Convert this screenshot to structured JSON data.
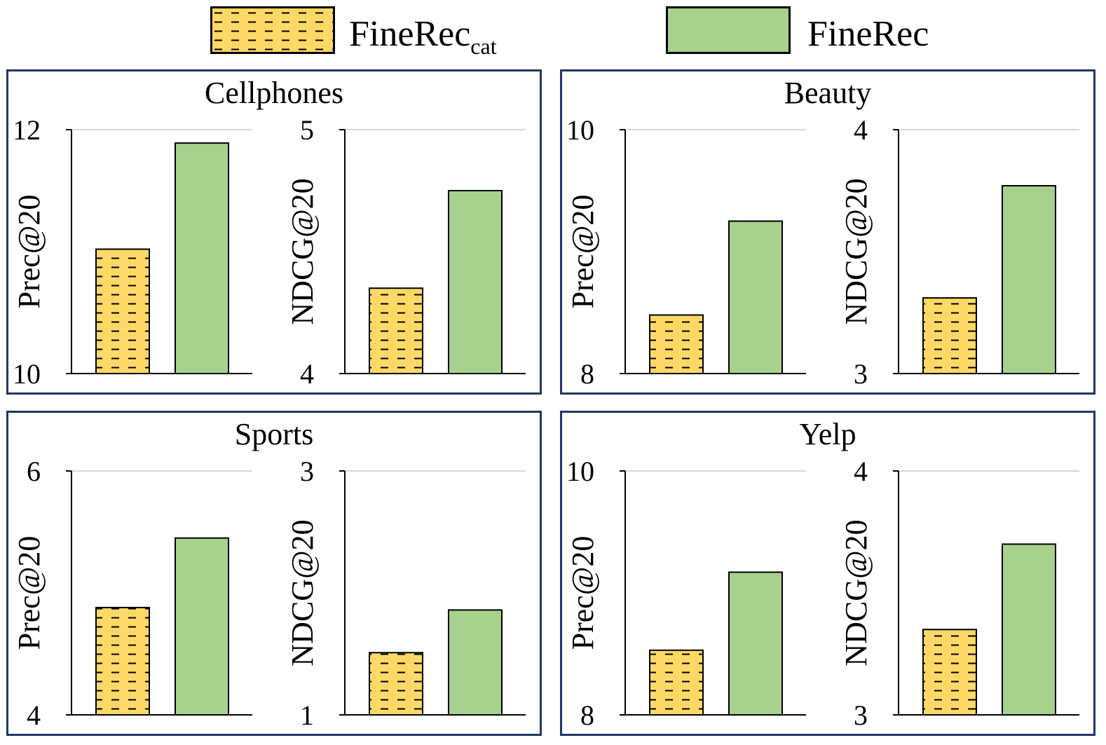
{
  "legend": {
    "items": [
      {
        "name": "FineRec",
        "subscript": "cat",
        "pattern": "dashes",
        "color": "#FFD966"
      },
      {
        "name": "FineRec",
        "subscript": "",
        "pattern": "solid",
        "color": "#A9D18E"
      }
    ]
  },
  "chart_data": [
    {
      "type": "bar",
      "title": "Cellphones",
      "series_names": [
        "FineRec_cat",
        "FineRec"
      ],
      "subplots": [
        {
          "ylabel": "Prec@20",
          "ylim": [
            10,
            12
          ],
          "yticks": [
            "12",
            "10"
          ],
          "values": [
            11.02,
            11.89
          ]
        },
        {
          "ylabel": "NDCG@20",
          "ylim": [
            4,
            5
          ],
          "yticks": [
            "5",
            "4"
          ],
          "values": [
            4.35,
            4.75
          ]
        }
      ]
    },
    {
      "type": "bar",
      "title": "Beauty",
      "series_names": [
        "FineRec_cat",
        "FineRec"
      ],
      "subplots": [
        {
          "ylabel": "Prec@20",
          "ylim": [
            8,
            10
          ],
          "yticks": [
            "10",
            "8"
          ],
          "values": [
            8.48,
            9.25
          ]
        },
        {
          "ylabel": "NDCG@20",
          "ylim": [
            3,
            4
          ],
          "yticks": [
            "4",
            "3"
          ],
          "values": [
            3.31,
            3.77
          ]
        }
      ]
    },
    {
      "type": "bar",
      "title": "Sports",
      "series_names": [
        "FineRec_cat",
        "FineRec"
      ],
      "subplots": [
        {
          "ylabel": "Prec@20",
          "ylim": [
            4,
            6
          ],
          "yticks": [
            "6",
            "4"
          ],
          "values": [
            4.88,
            5.45
          ]
        },
        {
          "ylabel": "NDCG@20",
          "ylim": [
            1,
            3
          ],
          "yticks": [
            "3",
            "1"
          ],
          "values": [
            1.51,
            1.86
          ]
        }
      ]
    },
    {
      "type": "bar",
      "title": "Yelp",
      "series_names": [
        "FineRec_cat",
        "FineRec"
      ],
      "subplots": [
        {
          "ylabel": "Prec@20",
          "ylim": [
            8,
            10
          ],
          "yticks": [
            "10",
            "8"
          ],
          "values": [
            8.53,
            9.17
          ]
        },
        {
          "ylabel": "NDCG@20",
          "ylim": [
            3,
            4
          ],
          "yticks": [
            "4",
            "3"
          ],
          "values": [
            3.35,
            3.7
          ]
        }
      ]
    }
  ]
}
